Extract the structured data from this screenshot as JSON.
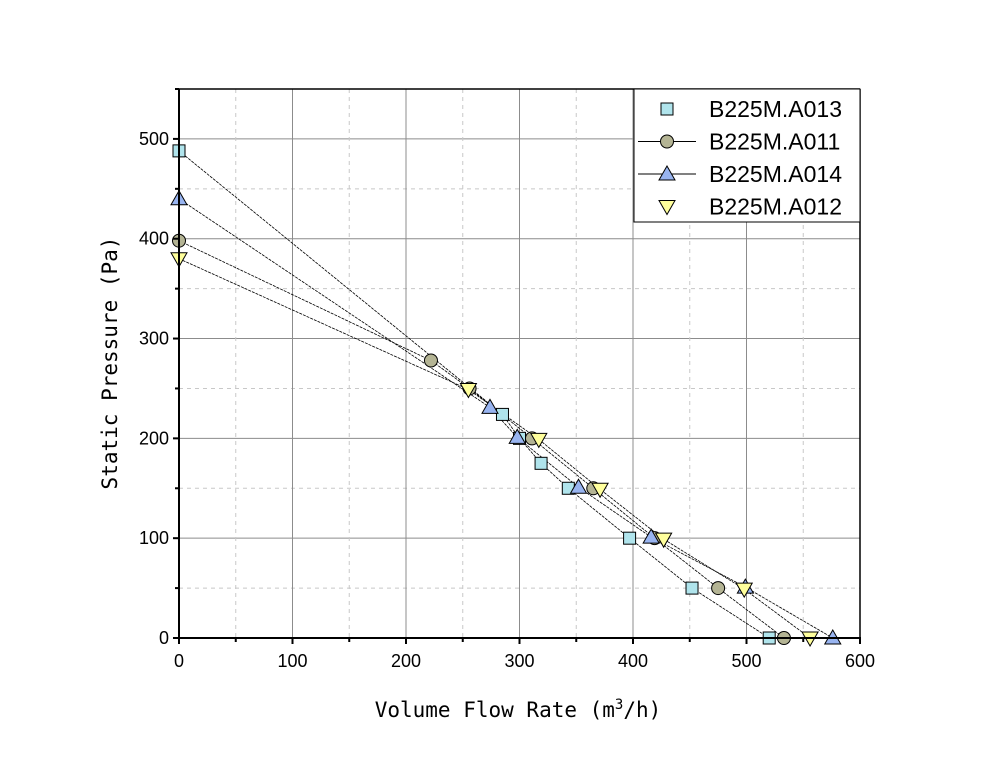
{
  "chart_data": {
    "type": "line",
    "title": "",
    "xlabel": "Volume Flow Rate (m",
    "xlabel_sup": "3",
    "xlabel_tail": "/h)",
    "ylabel": "Static Pressure (Pa)",
    "xlim": [
      0,
      600
    ],
    "ylim": [
      0,
      550
    ],
    "xticks": [
      "0",
      "100",
      "200",
      "300",
      "400",
      "500",
      "600"
    ],
    "yticks": [
      "0",
      "100",
      "200",
      "300",
      "400",
      "500"
    ],
    "grid": true,
    "legend_placement": "top-right",
    "series": [
      {
        "name": "B225M.A013",
        "marker": "square",
        "color": "#b0e4ec",
        "x": [
          0,
          285,
          300,
          319,
          343,
          397,
          452,
          520
        ],
        "y": [
          488,
          224,
          200,
          175,
          150,
          100,
          50,
          0
        ]
      },
      {
        "name": "B225M.A011",
        "marker": "circle",
        "color": "#b4b494",
        "x": [
          0,
          222,
          256,
          311,
          365,
          419,
          475,
          533
        ],
        "y": [
          398,
          278,
          250,
          200,
          150,
          100,
          50,
          0
        ]
      },
      {
        "name": "B225M.A014",
        "marker": "triangle-up",
        "color": "#98b4f0",
        "x": [
          0,
          274,
          298,
          352,
          416,
          499,
          576
        ],
        "y": [
          440,
          231,
          201,
          151,
          101,
          51,
          0
        ]
      },
      {
        "name": "B225M.A012",
        "marker": "triangle-down",
        "color": "#ffff9c",
        "x": [
          0,
          255,
          317,
          371,
          427,
          498,
          556
        ],
        "y": [
          380,
          249,
          199,
          149,
          99,
          49,
          0
        ]
      }
    ]
  }
}
